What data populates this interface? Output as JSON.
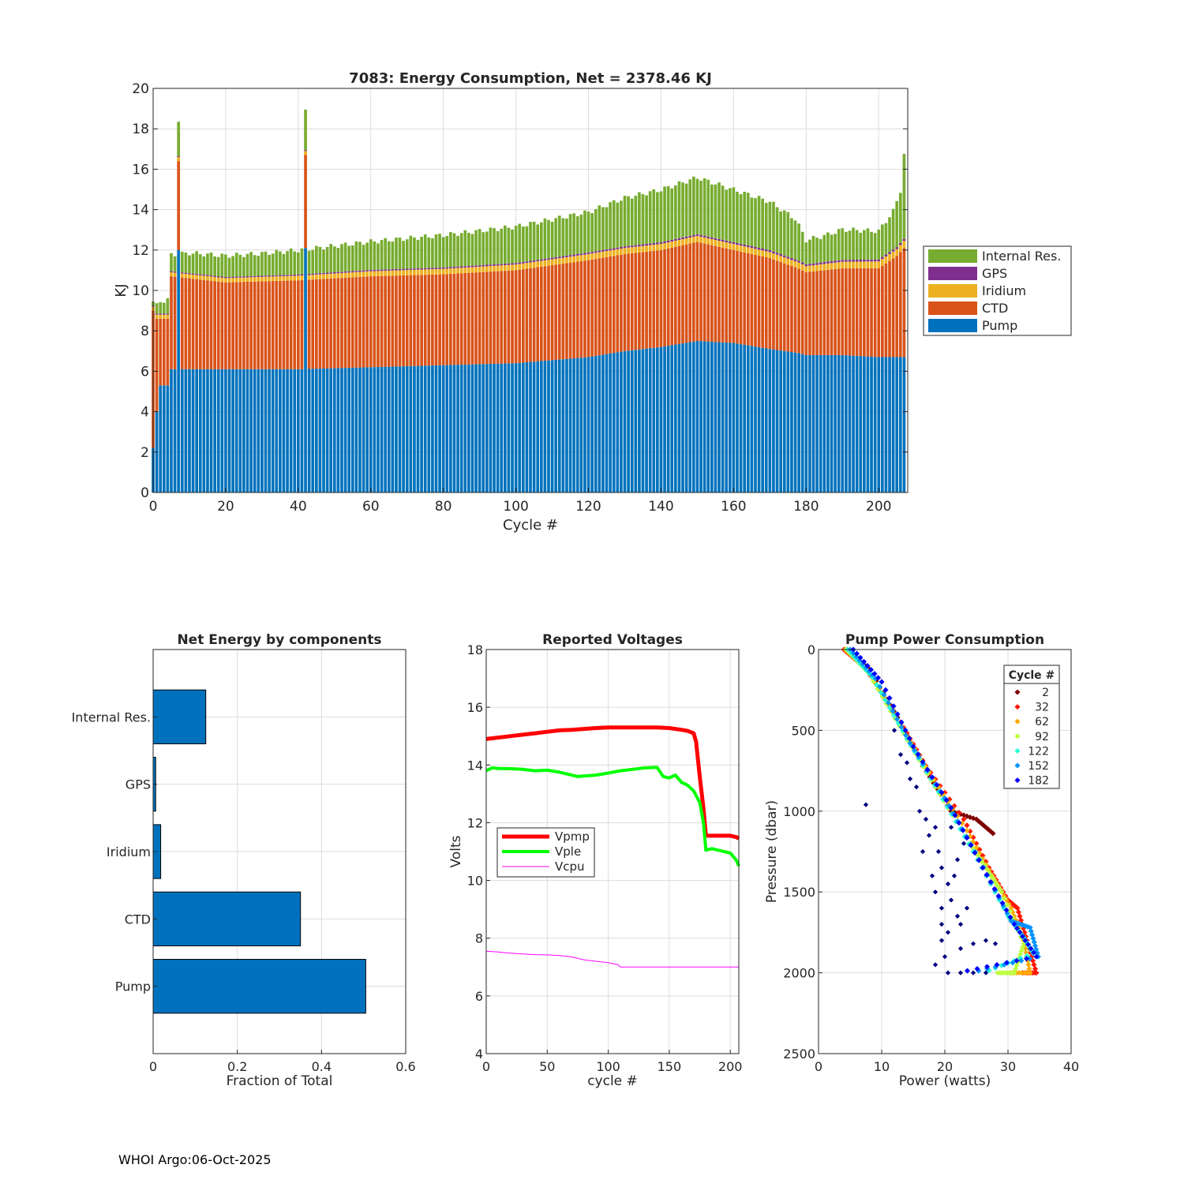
{
  "footer": "WHOI Argo:06-Oct-2025",
  "colors": {
    "pump": "#0072BD",
    "ctd": "#D95319",
    "iridium": "#EDB120",
    "gps": "#7E2F8E",
    "internal": "#77AC30",
    "vpmp": "#FF0000",
    "vple": "#00FF00",
    "vcpu": "#FF00FF"
  },
  "chart_data": [
    {
      "type": "bar",
      "stacked": true,
      "title": "7083: Energy Consumption,  Net = 2378.46 KJ",
      "xlabel": "Cycle #",
      "ylabel": "KJ",
      "xlim": [
        0,
        208
      ],
      "ylim": [
        0,
        20
      ],
      "xticks": [
        "0",
        "20",
        "40",
        "60",
        "80",
        "100",
        "120",
        "140",
        "160",
        "180",
        "200"
      ],
      "yticks": [
        "0",
        "2",
        "4",
        "6",
        "8",
        "10",
        "12",
        "14",
        "16",
        "18",
        "20"
      ],
      "grid": true,
      "legend_position": "outside-right",
      "legend": [
        "Internal Res.",
        "GPS",
        "Iridium",
        "CTD",
        "Pump"
      ],
      "series_order": [
        "Pump",
        "CTD",
        "Iridium",
        "GPS",
        "Internal Res."
      ],
      "anchors": {
        "pump": [
          [
            0,
            2.2
          ],
          [
            1,
            4.0
          ],
          [
            2,
            5.3
          ],
          [
            4,
            5.3
          ],
          [
            5,
            6.1
          ],
          [
            9,
            6.1
          ],
          [
            20,
            6.1
          ],
          [
            40,
            6.1
          ],
          [
            60,
            6.2
          ],
          [
            80,
            6.3
          ],
          [
            100,
            6.4
          ],
          [
            120,
            6.7
          ],
          [
            130,
            7.0
          ],
          [
            140,
            7.2
          ],
          [
            150,
            7.5
          ],
          [
            160,
            7.4
          ],
          [
            170,
            7.1
          ],
          [
            178,
            6.9
          ],
          [
            180,
            6.8
          ],
          [
            190,
            6.8
          ],
          [
            200,
            6.7
          ],
          [
            207,
            6.7
          ]
        ],
        "ctd": [
          [
            0,
            6.8
          ],
          [
            1,
            4.6
          ],
          [
            2,
            3.3
          ],
          [
            4,
            3.3
          ],
          [
            5,
            4.6
          ],
          [
            20,
            4.3
          ],
          [
            40,
            4.4
          ],
          [
            60,
            4.5
          ],
          [
            80,
            4.5
          ],
          [
            100,
            4.6
          ],
          [
            120,
            4.8
          ],
          [
            140,
            4.8
          ],
          [
            150,
            4.9
          ],
          [
            160,
            4.6
          ],
          [
            170,
            4.5
          ],
          [
            180,
            4.1
          ],
          [
            190,
            4.3
          ],
          [
            200,
            4.4
          ],
          [
            205,
            5.0
          ],
          [
            207,
            5.4
          ]
        ],
        "iridium": [
          [
            0,
            0.2
          ],
          [
            10,
            0.2
          ],
          [
            60,
            0.25
          ],
          [
            120,
            0.3
          ],
          [
            150,
            0.3
          ],
          [
            180,
            0.3
          ],
          [
            207,
            0.35
          ]
        ],
        "gps": [
          [
            0,
            0.05
          ],
          [
            207,
            0.1
          ]
        ],
        "internal": [
          [
            0,
            0.2
          ],
          [
            2,
            0.6
          ],
          [
            4,
            0.7
          ],
          [
            5,
            0.8
          ],
          [
            10,
            1.0
          ],
          [
            30,
            1.1
          ],
          [
            60,
            1.4
          ],
          [
            80,
            1.6
          ],
          [
            100,
            1.8
          ],
          [
            120,
            2.0
          ],
          [
            130,
            2.4
          ],
          [
            140,
            2.6
          ],
          [
            150,
            2.8
          ],
          [
            160,
            2.6
          ],
          [
            170,
            2.4
          ],
          [
            177,
            2.0
          ],
          [
            180,
            1.2
          ],
          [
            185,
            1.3
          ],
          [
            190,
            1.5
          ],
          [
            200,
            1.4
          ],
          [
            204,
            1.9
          ],
          [
            206,
            2.6
          ],
          [
            207,
            4.2
          ]
        ]
      },
      "spikes": [
        {
          "cycle": 7,
          "pump": 12.0,
          "ctd": 4.4,
          "iridium": 0.2,
          "gps": 0.05,
          "internal": 1.7
        },
        {
          "cycle": 42,
          "pump": 12.1,
          "ctd": 4.6,
          "iridium": 0.2,
          "gps": 0.05,
          "internal": 2.0
        }
      ]
    },
    {
      "type": "bar",
      "orientation": "horizontal",
      "title": "Net Energy by components",
      "xlabel": "Fraction of Total",
      "xlim": [
        0,
        0.6
      ],
      "xticks": [
        "0",
        "0.2",
        "0.4",
        "0.6"
      ],
      "categories": [
        "Internal Res.",
        "GPS",
        "Iridium",
        "CTD",
        "Pump"
      ],
      "values": [
        0.125,
        0.006,
        0.018,
        0.35,
        0.505
      ],
      "grid": true
    },
    {
      "type": "line",
      "title": "Reported Voltages",
      "xlabel": "cycle #",
      "ylabel": "Volts",
      "xlim": [
        0,
        207
      ],
      "ylim": [
        4,
        18
      ],
      "xticks": [
        "0",
        "50",
        "100",
        "150",
        "200"
      ],
      "yticks": [
        "4",
        "6",
        "8",
        "10",
        "12",
        "14",
        "16",
        "18"
      ],
      "legend": [
        "Vpmp",
        "Vple",
        "Vcpu"
      ],
      "legend_position": "middle-left",
      "grid": true,
      "series": [
        {
          "name": "Vpmp",
          "x": [
            0,
            10,
            20,
            30,
            40,
            50,
            60,
            70,
            80,
            90,
            100,
            110,
            120,
            130,
            140,
            150,
            160,
            165,
            170,
            172,
            175,
            178,
            180,
            182,
            190,
            200,
            205,
            207
          ],
          "y": [
            14.9,
            14.95,
            15.0,
            15.05,
            15.1,
            15.15,
            15.2,
            15.22,
            15.25,
            15.28,
            15.3,
            15.3,
            15.3,
            15.3,
            15.3,
            15.28,
            15.22,
            15.18,
            15.1,
            14.8,
            13.6,
            12.5,
            11.55,
            11.55,
            11.55,
            11.55,
            11.5,
            11.45
          ]
        },
        {
          "name": "Vple",
          "x": [
            0,
            5,
            10,
            20,
            30,
            40,
            50,
            60,
            70,
            75,
            80,
            90,
            100,
            110,
            120,
            130,
            140,
            145,
            150,
            155,
            160,
            165,
            170,
            175,
            178,
            180,
            185,
            190,
            195,
            200,
            205,
            207
          ],
          "y": [
            13.8,
            13.9,
            13.88,
            13.87,
            13.85,
            13.8,
            13.82,
            13.75,
            13.65,
            13.6,
            13.62,
            13.65,
            13.72,
            13.8,
            13.85,
            13.9,
            13.92,
            13.6,
            13.55,
            13.65,
            13.4,
            13.3,
            13.1,
            12.7,
            12.0,
            11.05,
            11.1,
            11.05,
            11.0,
            10.95,
            10.7,
            10.5
          ]
        },
        {
          "name": "Vcpu",
          "x": [
            0,
            10,
            20,
            30,
            40,
            50,
            60,
            70,
            80,
            90,
            100,
            108,
            110,
            120,
            140,
            160,
            180,
            200,
            207
          ],
          "y": [
            7.55,
            7.52,
            7.48,
            7.45,
            7.43,
            7.42,
            7.4,
            7.35,
            7.25,
            7.2,
            7.15,
            7.08,
            7.0,
            7.0,
            7.0,
            7.0,
            7.0,
            7.0,
            7.0
          ]
        }
      ]
    },
    {
      "type": "scatter",
      "title": "Pump Power Consumption",
      "xlabel": "Power (watts)",
      "ylabel": "Pressure (dbar)",
      "xlim": [
        0,
        40
      ],
      "ylim": [
        2500,
        0
      ],
      "xticks": [
        "0",
        "10",
        "20",
        "30",
        "40"
      ],
      "yticks": [
        "0",
        "500",
        "1000",
        "1500",
        "2000",
        "2500"
      ],
      "legend_title": "Cycle #",
      "legend_position": "top-right",
      "legend": [
        "2",
        "32",
        "62",
        "92",
        "122",
        "152",
        "182"
      ],
      "grid": true,
      "colorscale": {
        "min": 2,
        "max": 207
      },
      "profiles": [
        {
          "cycle": 2,
          "points": [
            [
              4.5,
              0
            ],
            [
              8.0,
              120
            ],
            [
              12.5,
              420
            ],
            [
              16.5,
              720
            ],
            [
              21.0,
              1000
            ],
            [
              25.0,
              1050
            ],
            [
              28.0,
              1150
            ]
          ]
        },
        {
          "cycle": 32,
          "points": [
            [
              4.0,
              0
            ],
            [
              7.5,
              120
            ],
            [
              13.0,
              450
            ],
            [
              17.0,
              720
            ],
            [
              23.0,
              1050
            ],
            [
              27.0,
              1350
            ],
            [
              30.0,
              1550
            ],
            [
              31.5,
              1600
            ],
            [
              33.0,
              1800
            ],
            [
              34.5,
              2000
            ],
            [
              32.0,
              2000
            ]
          ]
        },
        {
          "cycle": 62,
          "points": [
            [
              4.2,
              0
            ],
            [
              7.8,
              130
            ],
            [
              13.0,
              470
            ],
            [
              17.5,
              760
            ],
            [
              23.5,
              1120
            ],
            [
              27.5,
              1400
            ],
            [
              30.5,
              1600
            ],
            [
              32.5,
              1800
            ],
            [
              33.5,
              2000
            ],
            [
              30.0,
              2000
            ]
          ]
        },
        {
          "cycle": 92,
          "points": [
            [
              4.4,
              0
            ],
            [
              8.0,
              150
            ],
            [
              13.5,
              520
            ],
            [
              18.5,
              850
            ],
            [
              24.0,
              1200
            ],
            [
              27.0,
              1380
            ],
            [
              29.0,
              1500
            ],
            [
              32.5,
              1820
            ],
            [
              31.0,
              2000
            ],
            [
              28.0,
              2000
            ]
          ]
        },
        {
          "cycle": 122,
          "points": [
            [
              4.6,
              0
            ],
            [
              8.5,
              170
            ],
            [
              14.0,
              550
            ],
            [
              19.0,
              880
            ],
            [
              24.5,
              1250
            ],
            [
              30.0,
              1650
            ],
            [
              32.5,
              1780
            ],
            [
              34.0,
              1880
            ],
            [
              26.0,
              2000
            ]
          ]
        },
        {
          "cycle": 152,
          "points": [
            [
              5.0,
              0
            ],
            [
              9.0,
              180
            ],
            [
              14.5,
              580
            ],
            [
              20.0,
              920
            ],
            [
              25.5,
              1300
            ],
            [
              30.5,
              1680
            ],
            [
              33.5,
              1720
            ],
            [
              34.8,
              1900
            ],
            [
              24.0,
              2000
            ]
          ]
        },
        {
          "cycle": 182,
          "points": [
            [
              5.5,
              0
            ],
            [
              10.0,
              200
            ],
            [
              15.0,
              600
            ],
            [
              21.0,
              980
            ],
            [
              26.0,
              1350
            ],
            [
              31.0,
              1700
            ],
            [
              34.5,
              1900
            ],
            [
              22.0,
              2000
            ]
          ]
        }
      ],
      "scattered": [
        [
          7.5,
          960
        ],
        [
          12,
          500
        ],
        [
          13,
          650
        ],
        [
          14,
          700
        ],
        [
          14.5,
          800
        ],
        [
          15.5,
          850
        ],
        [
          16,
          1000
        ],
        [
          17,
          1050
        ],
        [
          17.5,
          1150
        ],
        [
          18.5,
          1100
        ],
        [
          19,
          1250
        ],
        [
          19.5,
          1350
        ],
        [
          16.5,
          1250
        ],
        [
          18.5,
          1500
        ],
        [
          19.5,
          1600
        ],
        [
          20.5,
          1450
        ],
        [
          21.5,
          1400
        ],
        [
          22,
          1300
        ],
        [
          19.5,
          1700
        ],
        [
          20.5,
          1750
        ],
        [
          22,
          1650
        ],
        [
          23.5,
          1600
        ],
        [
          20,
          1900
        ],
        [
          22.5,
          1850
        ],
        [
          24.5,
          1820
        ],
        [
          26.5,
          1800
        ],
        [
          28,
          1820
        ],
        [
          18.5,
          1950
        ],
        [
          20.5,
          2000
        ],
        [
          22.5,
          2000
        ],
        [
          24.5,
          2000
        ],
        [
          26.5,
          2000
        ],
        [
          19.5,
          1800
        ],
        [
          21,
          1550
        ],
        [
          22.5,
          1700
        ],
        [
          23,
          1200
        ],
        [
          21,
          1100
        ],
        [
          18,
          1400
        ]
      ]
    }
  ]
}
